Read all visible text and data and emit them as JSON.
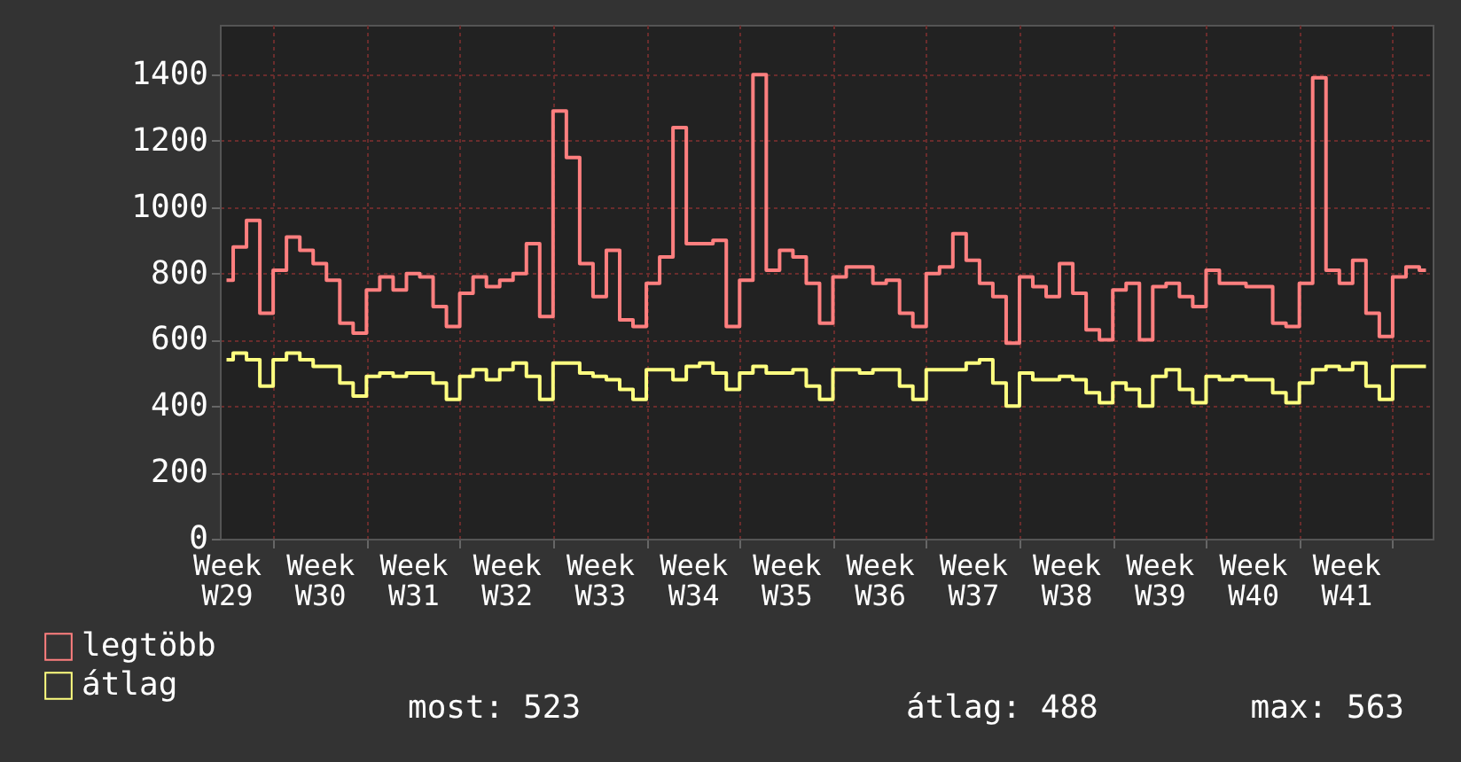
{
  "chart_data": {
    "type": "step",
    "categories": [
      "Week W29",
      null,
      null,
      null,
      null,
      null,
      null,
      "Week W30",
      null,
      null,
      null,
      null,
      null,
      null,
      "Week W31",
      null,
      null,
      null,
      null,
      null,
      null,
      "Week W32",
      null,
      null,
      null,
      null,
      null,
      null,
      "Week W33",
      null,
      null,
      null,
      null,
      null,
      null,
      "Week W34",
      null,
      null,
      null,
      null,
      null,
      null,
      "Week W35",
      null,
      null,
      null,
      null,
      null,
      null,
      "Week W36",
      null,
      null,
      null,
      null,
      null,
      null,
      "Week W37",
      null,
      null,
      null,
      null,
      null,
      null,
      "Week W38",
      null,
      null,
      null,
      null,
      null,
      null,
      "Week W39",
      null,
      null,
      null,
      null,
      null,
      null,
      "Week W40",
      null,
      null,
      null,
      null,
      null,
      null,
      "Week W41",
      null,
      null,
      null,
      null,
      null,
      null
    ],
    "series": [
      {
        "name": "legtöbb",
        "color": "#ff7f7f",
        "values": [
          780,
          880,
          960,
          680,
          810,
          910,
          870,
          830,
          780,
          650,
          620,
          750,
          790,
          750,
          800,
          790,
          700,
          640,
          740,
          790,
          760,
          780,
          800,
          890,
          670,
          1290,
          1150,
          830,
          730,
          870,
          660,
          640,
          770,
          850,
          1240,
          890,
          890,
          900,
          640,
          780,
          1400,
          810,
          870,
          850,
          770,
          650,
          790,
          820,
          820,
          770,
          780,
          680,
          640,
          800,
          820,
          920,
          840,
          770,
          730,
          590,
          790,
          760,
          730,
          830,
          740,
          630,
          600,
          750,
          770,
          600,
          760,
          770,
          730,
          700,
          810,
          770,
          770,
          760,
          760,
          650,
          640,
          770,
          1390,
          810,
          770,
          840,
          680,
          610,
          790,
          820,
          810
        ]
      },
      {
        "name": "átlag",
        "color": "#ffff80",
        "values": [
          540,
          560,
          540,
          460,
          540,
          560,
          540,
          520,
          520,
          470,
          430,
          490,
          500,
          490,
          500,
          500,
          470,
          420,
          490,
          510,
          480,
          510,
          530,
          490,
          420,
          530,
          530,
          500,
          490,
          480,
          450,
          420,
          510,
          510,
          480,
          520,
          530,
          500,
          450,
          500,
          520,
          500,
          500,
          510,
          460,
          420,
          510,
          510,
          500,
          510,
          510,
          460,
          420,
          510,
          510,
          510,
          530,
          540,
          470,
          400,
          500,
          480,
          480,
          490,
          480,
          440,
          410,
          470,
          450,
          400,
          490,
          510,
          450,
          410,
          490,
          480,
          490,
          480,
          480,
          440,
          410,
          470,
          510,
          520,
          510,
          530,
          460,
          420,
          520,
          520,
          520
        ]
      }
    ],
    "ylim": [
      0,
      1550
    ],
    "yticks": [
      0,
      200,
      400,
      600,
      800,
      1000,
      1200,
      1400
    ],
    "grid": true,
    "legend": "bottom left",
    "line_style": "solid",
    "annotations": [
      "most: 523",
      "átlag: 488",
      "max: 563"
    ]
  }
}
